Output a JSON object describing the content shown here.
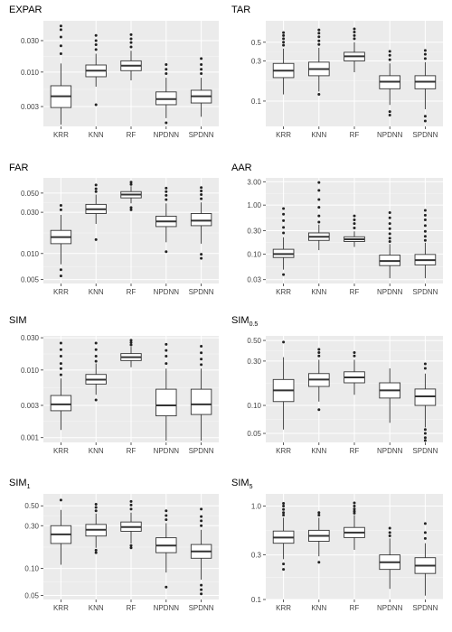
{
  "chart_data": [
    {
      "type": "box",
      "title": "EXPAR",
      "scale": "log",
      "ylim": [
        0.0015,
        0.06
      ],
      "yticks": [
        {
          "v": 0.003,
          "label": "0.003"
        },
        {
          "v": 0.01,
          "label": "0.010"
        },
        {
          "v": 0.03,
          "label": "0.030"
        }
      ],
      "categories": [
        "KRR",
        "KNN",
        "RF",
        "NPDNN",
        "SPDNN"
      ],
      "boxes": [
        {
          "q1": 0.0029,
          "median": 0.0043,
          "q3": 0.0062,
          "whisker_low": 0.0016,
          "whisker_high": 0.0135,
          "outliers": [
            0.019,
            0.025,
            0.034,
            0.044,
            0.05
          ]
        },
        {
          "q1": 0.0085,
          "median": 0.0105,
          "q3": 0.0128,
          "whisker_low": 0.006,
          "whisker_high": 0.019,
          "outliers": [
            0.0032,
            0.022,
            0.026,
            0.03,
            0.036
          ]
        },
        {
          "q1": 0.0105,
          "median": 0.0125,
          "q3": 0.0148,
          "whisker_low": 0.0075,
          "whisker_high": 0.021,
          "outliers": [
            0.024,
            0.028,
            0.032,
            0.037
          ]
        },
        {
          "q1": 0.0032,
          "median": 0.0039,
          "q3": 0.005,
          "whisker_low": 0.002,
          "whisker_high": 0.0082,
          "outliers": [
            0.0017,
            0.0095,
            0.011,
            0.013
          ]
        },
        {
          "q1": 0.0034,
          "median": 0.0043,
          "q3": 0.0053,
          "whisker_low": 0.0021,
          "whisker_high": 0.0082,
          "outliers": [
            0.0095,
            0.011,
            0.013,
            0.016
          ]
        }
      ]
    },
    {
      "type": "box",
      "title": "TAR",
      "scale": "log",
      "ylim": [
        0.05,
        0.9
      ],
      "yticks": [
        {
          "v": 0.1,
          "label": "0.1"
        },
        {
          "v": 0.3,
          "label": "0.3"
        },
        {
          "v": 0.5,
          "label": "0.5"
        }
      ],
      "categories": [
        "KRR",
        "KNN",
        "RF",
        "NPDNN",
        "SPDNN"
      ],
      "boxes": [
        {
          "q1": 0.19,
          "median": 0.23,
          "q3": 0.28,
          "whisker_low": 0.12,
          "whisker_high": 0.42,
          "outliers": [
            0.46,
            0.5,
            0.55,
            0.6,
            0.65
          ]
        },
        {
          "q1": 0.2,
          "median": 0.24,
          "q3": 0.29,
          "whisker_low": 0.13,
          "whisker_high": 0.43,
          "outliers": [
            0.12,
            0.47,
            0.52,
            0.58,
            0.64,
            0.7
          ]
        },
        {
          "q1": 0.3,
          "median": 0.34,
          "q3": 0.38,
          "whisker_low": 0.22,
          "whisker_high": 0.5,
          "outliers": [
            0.55,
            0.6,
            0.66,
            0.72
          ]
        },
        {
          "q1": 0.14,
          "median": 0.17,
          "q3": 0.2,
          "whisker_low": 0.09,
          "whisker_high": 0.28,
          "outliers": [
            0.068,
            0.075,
            0.31,
            0.35,
            0.39
          ]
        },
        {
          "q1": 0.14,
          "median": 0.17,
          "q3": 0.2,
          "whisker_low": 0.08,
          "whisker_high": 0.29,
          "outliers": [
            0.058,
            0.066,
            0.32,
            0.36,
            0.4
          ]
        }
      ]
    },
    {
      "type": "box",
      "title": "FAR",
      "scale": "log",
      "ylim": [
        0.0045,
        0.075
      ],
      "yticks": [
        {
          "v": 0.005,
          "label": "0.005"
        },
        {
          "v": 0.01,
          "label": "0.010"
        },
        {
          "v": 0.03,
          "label": "0.030"
        },
        {
          "v": 0.05,
          "label": "0.050"
        }
      ],
      "categories": [
        "KRR",
        "KNN",
        "RF",
        "NPDNN",
        "SPDNN"
      ],
      "boxes": [
        {
          "q1": 0.013,
          "median": 0.0155,
          "q3": 0.0185,
          "whisker_low": 0.0075,
          "whisker_high": 0.028,
          "outliers": [
            0.0055,
            0.0065,
            0.032,
            0.036
          ]
        },
        {
          "q1": 0.029,
          "median": 0.0325,
          "q3": 0.037,
          "whisker_low": 0.022,
          "whisker_high": 0.048,
          "outliers": [
            0.0145,
            0.052,
            0.056,
            0.062
          ]
        },
        {
          "q1": 0.044,
          "median": 0.048,
          "q3": 0.052,
          "whisker_low": 0.038,
          "whisker_high": 0.06,
          "outliers": [
            0.032,
            0.034,
            0.063,
            0.067
          ]
        },
        {
          "q1": 0.0205,
          "median": 0.0235,
          "q3": 0.027,
          "whisker_low": 0.0135,
          "whisker_high": 0.038,
          "outliers": [
            0.0105,
            0.042,
            0.047,
            0.052,
            0.057
          ]
        },
        {
          "q1": 0.021,
          "median": 0.024,
          "q3": 0.029,
          "whisker_low": 0.013,
          "whisker_high": 0.039,
          "outliers": [
            0.0088,
            0.0098,
            0.043,
            0.048,
            0.053,
            0.058
          ]
        }
      ]
    },
    {
      "type": "box",
      "title": "AAR",
      "scale": "log",
      "ylim": [
        0.025,
        3.6
      ],
      "yticks": [
        {
          "v": 0.03,
          "label": "0.03"
        },
        {
          "v": 0.1,
          "label": "0.10"
        },
        {
          "v": 0.3,
          "label": "0.30"
        },
        {
          "v": 1,
          "label": "1.00"
        },
        {
          "v": 3,
          "label": "3.00"
        }
      ],
      "categories": [
        "KRR",
        "KNN",
        "RF",
        "NPDNN",
        "SPDNN"
      ],
      "boxes": [
        {
          "q1": 0.085,
          "median": 0.1,
          "q3": 0.125,
          "whisker_low": 0.048,
          "whisker_high": 0.22,
          "outliers": [
            0.038,
            0.27,
            0.35,
            0.48,
            0.65,
            0.85
          ]
        },
        {
          "q1": 0.19,
          "median": 0.225,
          "q3": 0.27,
          "whisker_low": 0.12,
          "whisker_high": 0.4,
          "outliers": [
            0.45,
            0.6,
            0.9,
            1.3,
            2.0,
            2.9
          ]
        },
        {
          "q1": 0.18,
          "median": 0.2,
          "q3": 0.225,
          "whisker_low": 0.14,
          "whisker_high": 0.29,
          "outliers": [
            0.34,
            0.42,
            0.5,
            0.6
          ]
        },
        {
          "q1": 0.058,
          "median": 0.072,
          "q3": 0.095,
          "whisker_low": 0.032,
          "whisker_high": 0.16,
          "outliers": [
            0.18,
            0.21,
            0.26,
            0.33,
            0.42,
            0.55,
            0.7
          ]
        },
        {
          "q1": 0.06,
          "median": 0.075,
          "q3": 0.098,
          "whisker_low": 0.032,
          "whisker_high": 0.17,
          "outliers": [
            0.19,
            0.23,
            0.29,
            0.38,
            0.5,
            0.62,
            0.78
          ]
        }
      ]
    },
    {
      "type": "box",
      "title": "SIM",
      "scale": "log",
      "ylim": [
        0.00085,
        0.032
      ],
      "yticks": [
        {
          "v": 0.001,
          "label": "0.001"
        },
        {
          "v": 0.003,
          "label": "0.003"
        },
        {
          "v": 0.01,
          "label": "0.010"
        },
        {
          "v": 0.03,
          "label": "0.030"
        }
      ],
      "categories": [
        "KRR",
        "KNN",
        "RF",
        "NPDNN",
        "SPDNN"
      ],
      "boxes": [
        {
          "q1": 0.0025,
          "median": 0.0031,
          "q3": 0.0042,
          "whisker_low": 0.0013,
          "whisker_high": 0.0075,
          "outliers": [
            0.0085,
            0.0105,
            0.0125,
            0.016,
            0.02,
            0.025
          ]
        },
        {
          "q1": 0.0062,
          "median": 0.0072,
          "q3": 0.0086,
          "whisker_low": 0.0043,
          "whisker_high": 0.0125,
          "outliers": [
            0.0036,
            0.0135,
            0.016,
            0.02,
            0.025
          ]
        },
        {
          "q1": 0.0138,
          "median": 0.0155,
          "q3": 0.0175,
          "whisker_low": 0.011,
          "whisker_high": 0.022,
          "outliers": [
            0.0235,
            0.0255,
            0.0275
          ]
        },
        {
          "q1": 0.0021,
          "median": 0.003,
          "q3": 0.0052,
          "whisker_low": 0.0009,
          "whisker_high": 0.0105,
          "outliers": [
            0.0125,
            0.016,
            0.0195,
            0.024
          ]
        },
        {
          "q1": 0.0022,
          "median": 0.0031,
          "q3": 0.0052,
          "whisker_low": 0.0009,
          "whisker_high": 0.0105,
          "outliers": [
            0.012,
            0.0145,
            0.018,
            0.0225
          ]
        }
      ]
    },
    {
      "type": "box",
      "title": "SIM",
      "title_sub": "0.5",
      "scale": "log",
      "ylim": [
        0.04,
        0.56
      ],
      "yticks": [
        {
          "v": 0.05,
          "label": "0.05"
        },
        {
          "v": 0.1,
          "label": "0.10"
        },
        {
          "v": 0.3,
          "label": "0.30"
        },
        {
          "v": 0.5,
          "label": "0.50"
        }
      ],
      "categories": [
        "KRR",
        "KNN",
        "RF",
        "NPDNN",
        "SPDNN"
      ],
      "boxes": [
        {
          "q1": 0.11,
          "median": 0.145,
          "q3": 0.19,
          "whisker_low": 0.055,
          "whisker_high": 0.33,
          "outliers": [
            0.48
          ]
        },
        {
          "q1": 0.16,
          "median": 0.19,
          "q3": 0.22,
          "whisker_low": 0.11,
          "whisker_high": 0.31,
          "outliers": [
            0.09,
            0.34,
            0.37,
            0.4
          ]
        },
        {
          "q1": 0.175,
          "median": 0.2,
          "q3": 0.23,
          "whisker_low": 0.13,
          "whisker_high": 0.31,
          "outliers": [
            0.34,
            0.37
          ]
        },
        {
          "q1": 0.12,
          "median": 0.145,
          "q3": 0.175,
          "whisker_low": 0.065,
          "whisker_high": 0.25,
          "outliers": []
        },
        {
          "q1": 0.1,
          "median": 0.125,
          "q3": 0.15,
          "whisker_low": 0.058,
          "whisker_high": 0.22,
          "outliers": [
            0.042,
            0.045,
            0.05,
            0.055,
            0.25,
            0.28
          ]
        }
      ]
    },
    {
      "type": "box",
      "title": "SIM",
      "title_sub": "1",
      "scale": "log",
      "ylim": [
        0.045,
        0.68
      ],
      "yticks": [
        {
          "v": 0.05,
          "label": "0.05"
        },
        {
          "v": 0.1,
          "label": "0.10"
        },
        {
          "v": 0.3,
          "label": "0.30"
        },
        {
          "v": 0.5,
          "label": "0.50"
        }
      ],
      "categories": [
        "KRR",
        "KNN",
        "RF",
        "NPDNN",
        "SPDNN"
      ],
      "boxes": [
        {
          "q1": 0.19,
          "median": 0.24,
          "q3": 0.3,
          "whisker_low": 0.11,
          "whisker_high": 0.45,
          "outliers": [
            0.58
          ]
        },
        {
          "q1": 0.23,
          "median": 0.27,
          "q3": 0.31,
          "whisker_low": 0.17,
          "whisker_high": 0.41,
          "outliers": [
            0.15,
            0.16,
            0.44,
            0.48,
            0.52
          ]
        },
        {
          "q1": 0.26,
          "median": 0.29,
          "q3": 0.33,
          "whisker_low": 0.19,
          "whisker_high": 0.42,
          "outliers": [
            0.17,
            0.18,
            0.46,
            0.51,
            0.56
          ]
        },
        {
          "q1": 0.15,
          "median": 0.18,
          "q3": 0.22,
          "whisker_low": 0.09,
          "whisker_high": 0.32,
          "outliers": [
            0.062,
            0.35,
            0.39,
            0.44
          ]
        },
        {
          "q1": 0.13,
          "median": 0.155,
          "q3": 0.185,
          "whisker_low": 0.075,
          "whisker_high": 0.27,
          "outliers": [
            0.052,
            0.058,
            0.065,
            0.3,
            0.34,
            0.38,
            0.46
          ]
        }
      ]
    },
    {
      "type": "box",
      "title": "SIM",
      "title_sub": "5",
      "scale": "log",
      "ylim": [
        0.1,
        1.35
      ],
      "yticks": [
        {
          "v": 0.1,
          "label": "0.1"
        },
        {
          "v": 0.3,
          "label": "0.3"
        },
        {
          "v": 1,
          "label": "1.0"
        }
      ],
      "categories": [
        "KRR",
        "KNN",
        "RF",
        "NPDNN",
        "SPDNN"
      ],
      "boxes": [
        {
          "q1": 0.4,
          "median": 0.46,
          "q3": 0.54,
          "whisker_low": 0.27,
          "whisker_high": 0.75,
          "outliers": [
            0.21,
            0.24,
            0.8,
            0.85,
            0.92,
            1.0,
            1.07
          ]
        },
        {
          "q1": 0.42,
          "median": 0.48,
          "q3": 0.55,
          "whisker_low": 0.29,
          "whisker_high": 0.75,
          "outliers": [
            0.25,
            0.8,
            0.85
          ]
        },
        {
          "q1": 0.46,
          "median": 0.52,
          "q3": 0.59,
          "whisker_low": 0.34,
          "whisker_high": 0.8,
          "outliers": [
            0.84,
            0.88,
            0.93,
            1.0,
            1.08
          ]
        },
        {
          "q1": 0.21,
          "median": 0.25,
          "q3": 0.3,
          "whisker_low": 0.13,
          "whisker_high": 0.45,
          "outliers": [
            0.48,
            0.52,
            0.58
          ]
        },
        {
          "q1": 0.19,
          "median": 0.23,
          "q3": 0.28,
          "whisker_low": 0.11,
          "whisker_high": 0.4,
          "outliers": [
            0.45,
            0.52,
            0.65
          ]
        }
      ]
    }
  ],
  "colors": {
    "panel_background": "#ebebeb",
    "grid_major": "#ffffff",
    "box_fill": "#ffffff",
    "box_line": "#333333",
    "outlier": "#222222",
    "tick_text": "#444444",
    "title_text": "#000000"
  }
}
